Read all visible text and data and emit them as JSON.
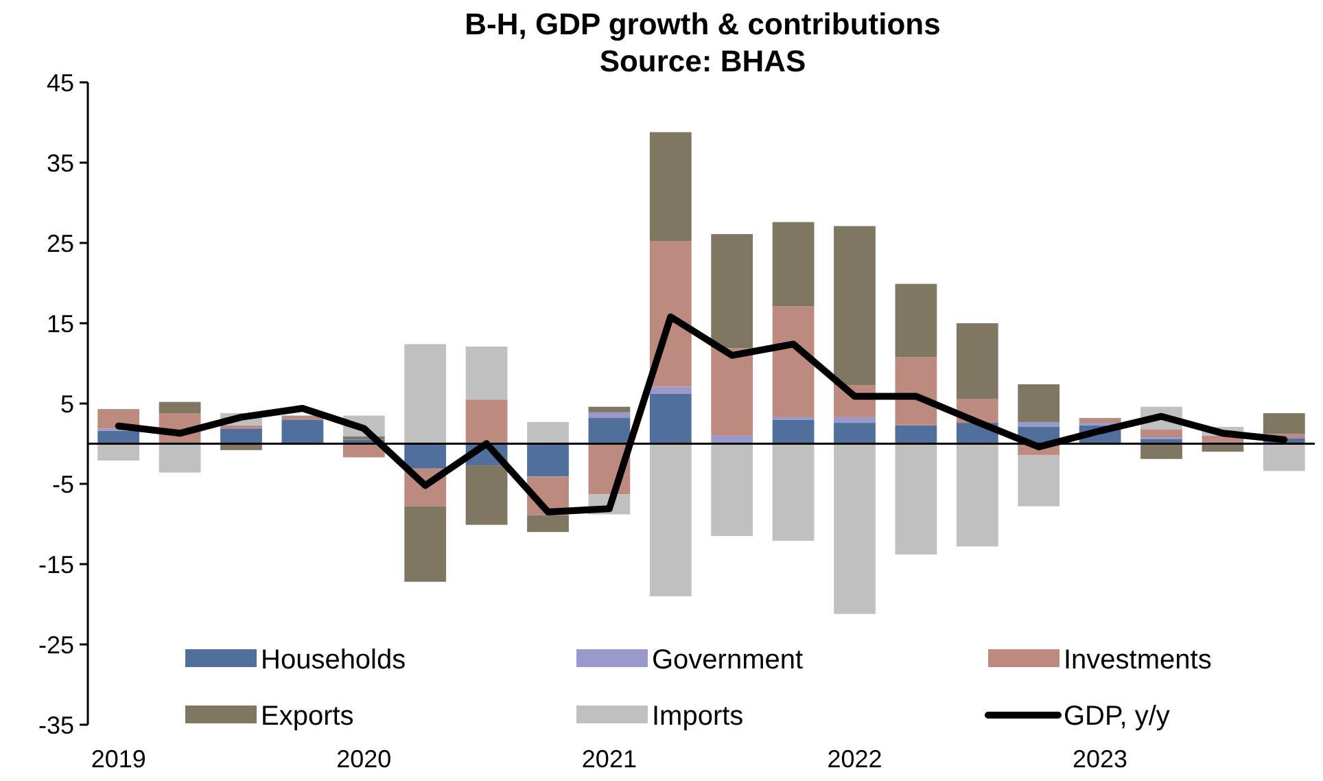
{
  "chart_data": {
    "type": "bar",
    "title": "B-H, GDP growth & contributions",
    "subtitle": "Source: BHAS",
    "stacked": true,
    "legend": "bottom",
    "grid": false,
    "categories": [
      "2019",
      null,
      null,
      null,
      "2020",
      null,
      null,
      null,
      "2021",
      null,
      null,
      null,
      "2022",
      null,
      null,
      null,
      "2023",
      null,
      null,
      null
    ],
    "ylim": [
      -35,
      45
    ],
    "yticks": [
      -35,
      -25,
      -15,
      -5,
      5,
      15,
      25,
      35,
      45
    ],
    "series": [
      {
        "name": "Households",
        "color": "#50709b",
        "values": [
          1.6,
          0,
          1.9,
          3.0,
          0.5,
          -3.1,
          -2.7,
          -4.1,
          3.2,
          6.2,
          0,
          3.0,
          2.6,
          2.3,
          2.6,
          2.1,
          2.3,
          0.6,
          0,
          0.7
        ]
      },
      {
        "name": "Government",
        "color": "#9999cc",
        "values": [
          0.3,
          0,
          0,
          0,
          0,
          0,
          0,
          0,
          0.7,
          0.9,
          1.0,
          0.3,
          0.7,
          0,
          0,
          0.6,
          0.3,
          0.2,
          0,
          0
        ]
      },
      {
        "name": "Investments",
        "color": "#bc8a7e",
        "values": [
          2.3,
          3.8,
          0.4,
          0.5,
          -1.7,
          -4.7,
          5.5,
          -4.8,
          -6.3,
          18.1,
          10.9,
          13.8,
          4.0,
          8.5,
          3.0,
          -1.4,
          0.6,
          1.0,
          1.0,
          0.5
        ]
      },
      {
        "name": "Exports",
        "color": "#807762",
        "values": [
          0.1,
          1.4,
          -0.8,
          0,
          0.4,
          -9.4,
          -7.4,
          -2.1,
          0.7,
          13.6,
          14.2,
          10.5,
          19.8,
          9.1,
          9.4,
          4.7,
          0,
          -1.9,
          -1.0,
          2.6
        ]
      },
      {
        "name": "Imports",
        "color": "#c0c0c0",
        "values": [
          -2.1,
          -3.6,
          1.5,
          0,
          2.6,
          12.4,
          6.6,
          2.7,
          -2.5,
          -19.0,
          -11.5,
          -12.1,
          -21.2,
          -13.8,
          -12.8,
          -6.4,
          0,
          2.8,
          1.1,
          -3.4
        ]
      },
      {
        "name": "GDP, y/y",
        "type": "line",
        "color": "#000000",
        "line_style": "solid",
        "values": [
          2.2,
          1.3,
          3.3,
          4.4,
          1.9,
          -5.2,
          0,
          -8.5,
          -8.1,
          15.8,
          11.0,
          12.4,
          5.9,
          5.9,
          2.7,
          -0.4,
          1.6,
          3.4,
          1.3,
          0.5
        ]
      }
    ]
  }
}
